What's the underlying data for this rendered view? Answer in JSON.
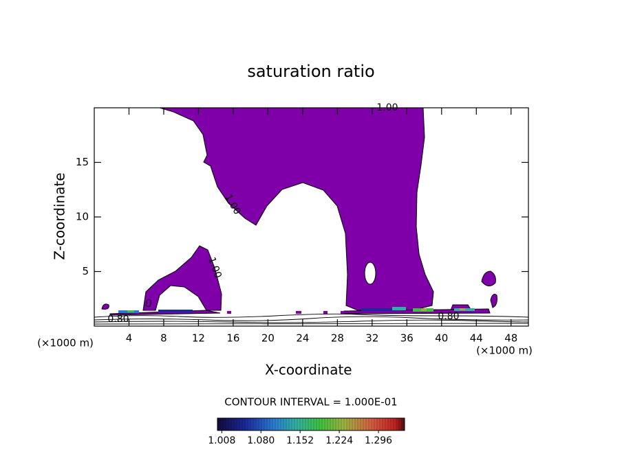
{
  "chart_data": {
    "type": "contour",
    "title": "saturation ratio",
    "x_label": "X-coordinate",
    "y_label": "Z-coordinate",
    "unit_label": "(×1000 m)",
    "xlim": [
      0,
      50
    ],
    "ylim": [
      0,
      20
    ],
    "xticks": [
      4,
      8,
      12,
      16,
      20,
      24,
      28,
      32,
      36,
      40,
      44,
      48
    ],
    "yticks": [
      5,
      10,
      15
    ],
    "contour_labels": [
      "1.00",
      "1.00",
      "1.00",
      "0.80",
      "0.80"
    ],
    "contour_interval": "CONTOUR INTERVAL = 1.000E-01",
    "colorbar": {
      "lim": [
        1.0,
        1.344
      ],
      "ticks": [
        {
          "value": 1.008,
          "label": "1.008"
        },
        {
          "value": 1.08,
          "label": "1.080"
        },
        {
          "value": 1.152,
          "label": "1.152"
        },
        {
          "value": 1.224,
          "label": "1.224"
        },
        {
          "value": 1.296,
          "label": "1.296"
        }
      ]
    }
  }
}
